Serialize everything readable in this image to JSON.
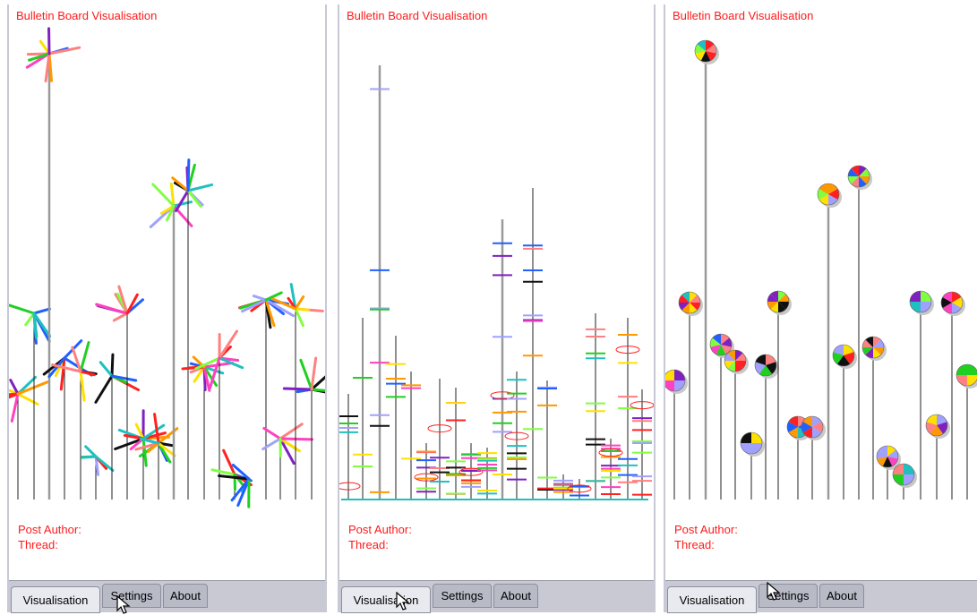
{
  "panels": [
    {
      "title": "Bulletin Board Visualisation",
      "style": "pinwheel",
      "post_author_label": "Post Author:",
      "thread_label": "Thread:",
      "tabs": [
        "Visualisation",
        "Settings",
        "About"
      ],
      "active_tab": "Visualisation"
    },
    {
      "title": "Bulletin Board Visualisation",
      "style": "bars",
      "post_author_label": "Post Author:",
      "thread_label": "Thread:",
      "tabs": [
        "Visualisation",
        "Settings",
        "About"
      ],
      "active_tab": "Visualisation"
    },
    {
      "title": "Bulletin Board Visualisation",
      "style": "pie",
      "post_author_label": "Post Author:",
      "thread_label": "Thread:",
      "tabs": [
        "Visualisation",
        "Settings",
        "About"
      ],
      "active_tab": "Visualisation"
    }
  ],
  "palette": [
    "#ff2020",
    "#ff9900",
    "#ffe000",
    "#20d020",
    "#20c0c0",
    "#2060ff",
    "#8020c0",
    "#ff40c0",
    "#101010",
    "#a0a0ff",
    "#ff8080",
    "#80ff40"
  ]
}
